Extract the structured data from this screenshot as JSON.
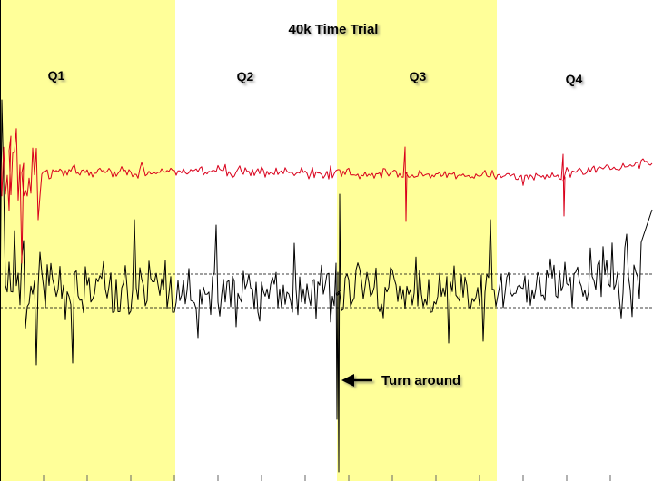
{
  "chart_data": {
    "type": "line",
    "title": "40k Time Trial",
    "xlabel": "",
    "ylabel": "",
    "grid": false,
    "quarters": [
      {
        "label": "Q1",
        "highlighted": true
      },
      {
        "label": "Q2",
        "highlighted": false
      },
      {
        "label": "Q3",
        "highlighted": true
      },
      {
        "label": "Q4",
        "highlighted": false
      }
    ],
    "series": [
      {
        "color": "#d9001b"
      },
      {
        "color": "#000000"
      }
    ],
    "annotation": {
      "text": "Turn around"
    },
    "reference_lines": 2
  },
  "colors": {
    "highlight": "#ffff99",
    "background": "#ffffff",
    "red_series": "#d9001b",
    "black_series": "#000000"
  }
}
